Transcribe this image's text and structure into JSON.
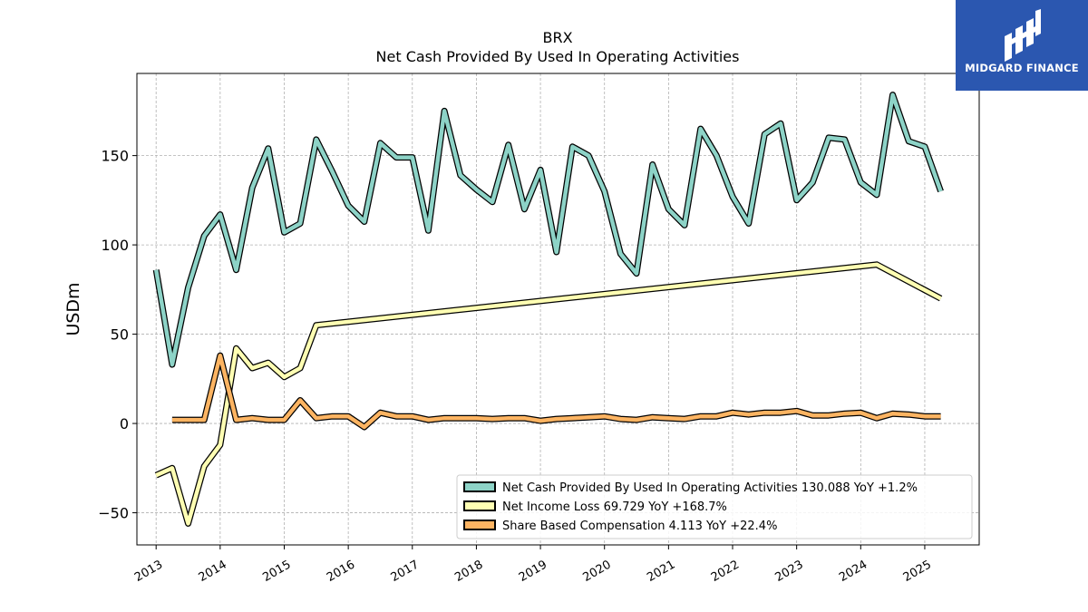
{
  "chart_data": {
    "type": "line",
    "title": "BRX",
    "subtitle": "Net Cash Provided By Used In Operating Activities",
    "ylabel": "USDm",
    "xlabel": "",
    "xlim": [
      2012.7,
      2025.85
    ],
    "ylim": [
      -68,
      196
    ],
    "yticks": [
      -50,
      0,
      50,
      100,
      150
    ],
    "xticks": [
      2013,
      2014,
      2015,
      2016,
      2017,
      2018,
      2019,
      2020,
      2021,
      2022,
      2023,
      2024,
      2025
    ],
    "grid": true,
    "legend_position": "lower-right",
    "series": [
      {
        "name": "Net Cash Provided By Used In Operating Activities",
        "legend_label": "Net Cash Provided By Used In Operating Activities  130.088 YoY +1.2%",
        "color": "#8dd3c7",
        "x": [
          2013.0,
          2013.25,
          2013.5,
          2013.75,
          2014.0,
          2014.25,
          2014.5,
          2014.75,
          2015.0,
          2015.25,
          2015.5,
          2015.75,
          2016.0,
          2016.25,
          2016.5,
          2016.75,
          2017.0,
          2017.25,
          2017.5,
          2017.75,
          2018.0,
          2018.25,
          2018.5,
          2018.75,
          2019.0,
          2019.25,
          2019.5,
          2019.75,
          2020.0,
          2020.25,
          2020.5,
          2020.75,
          2021.0,
          2021.25,
          2021.5,
          2021.75,
          2022.0,
          2022.25,
          2022.5,
          2022.75,
          2023.0,
          2023.25,
          2023.5,
          2023.75,
          2024.0,
          2024.25,
          2024.5,
          2024.75,
          2025.0,
          2025.25
        ],
        "y": [
          86,
          33,
          76,
          105,
          117,
          86,
          132,
          154,
          107,
          112,
          159,
          141,
          122,
          113,
          157,
          149,
          149,
          108,
          175,
          139,
          131,
          124,
          156,
          120,
          142,
          96,
          155,
          150,
          130,
          95,
          84,
          145,
          120,
          111,
          165,
          150,
          127,
          112,
          162,
          168,
          125,
          135,
          160,
          159,
          135,
          128,
          184,
          158,
          155,
          130
        ]
      },
      {
        "name": "Net Income Loss",
        "legend_label": "Net Income Loss  69.729 YoY +168.7%",
        "color": "#ffffb3",
        "x": [
          2013.0,
          2013.25,
          2013.5,
          2013.75,
          2014.0,
          2014.25,
          2014.5,
          2014.75,
          2015.0,
          2015.25,
          2015.5,
          2024.25,
          2025.25
        ],
        "y": [
          -29,
          -25,
          -56,
          -24,
          -12,
          42,
          31,
          34,
          26,
          31,
          55,
          89,
          70
        ]
      },
      {
        "name": "Share Based Compensation",
        "legend_label": "Share Based Compensation  4.113 YoY +22.4%",
        "color": "#fdb462",
        "x": [
          2013.25,
          2013.5,
          2013.75,
          2014.0,
          2014.25,
          2014.5,
          2014.75,
          2015.0,
          2015.25,
          2015.5,
          2015.75,
          2016.0,
          2016.25,
          2016.5,
          2016.75,
          2017.0,
          2017.25,
          2017.5,
          2017.75,
          2018.0,
          2018.25,
          2018.5,
          2018.75,
          2019.0,
          2019.25,
          2019.5,
          2019.75,
          2020.0,
          2020.25,
          2020.5,
          2020.75,
          2021.0,
          2021.25,
          2021.5,
          2021.75,
          2022.0,
          2022.25,
          2022.5,
          2022.75,
          2023.0,
          2023.25,
          2023.5,
          2023.75,
          2024.0,
          2024.25,
          2024.5,
          2024.75,
          2025.0,
          2025.25
        ],
        "y": [
          2,
          2,
          2,
          38,
          2,
          3,
          2,
          2,
          13,
          3,
          4,
          4,
          -2,
          6,
          4,
          4,
          2,
          3,
          3,
          3,
          2.5,
          3,
          3,
          1.5,
          2.5,
          3,
          3.5,
          4,
          2.5,
          2,
          3.5,
          3,
          2.5,
          4,
          4,
          6,
          5,
          6,
          6,
          7,
          4.5,
          4.5,
          5.5,
          6,
          3,
          5.5,
          5,
          4,
          4
        ]
      }
    ]
  },
  "branding": {
    "logo_text": "MIDGARD FINANCE",
    "logo_icon": "midgard-logo-icon",
    "background_color": "#2b57b0"
  }
}
